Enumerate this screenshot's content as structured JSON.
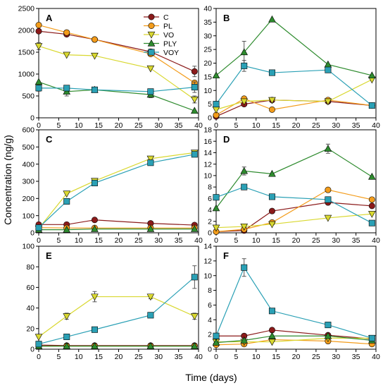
{
  "figure": {
    "ylabel": "Concentration (ng/g)",
    "xlabel": "Time (days)"
  },
  "series_styles": [
    {
      "name": "C",
      "color": "#8B1A1A",
      "marker": "circle"
    },
    {
      "name": "PL",
      "color": "#F39C1B",
      "marker": "circle"
    },
    {
      "name": "VO",
      "color": "#D9D830",
      "marker": "triangle-down"
    },
    {
      "name": "PLY",
      "color": "#2E8B2E",
      "marker": "triangle-up"
    },
    {
      "name": "VOY",
      "color": "#2AA0B5",
      "marker": "square"
    }
  ],
  "chart_data": [
    {
      "type": "line",
      "panel": "A",
      "x": [
        0,
        7,
        14,
        28,
        39
      ],
      "xlim": [
        0,
        40
      ],
      "ylim": [
        0,
        2500
      ],
      "xticks": [
        0,
        5,
        10,
        15,
        20,
        25,
        30,
        35,
        40
      ],
      "yticks": [
        0,
        500,
        1000,
        1500,
        2000,
        2500
      ],
      "legend": "top-right",
      "series": [
        {
          "name": "C",
          "values": [
            1980,
            1910,
            1790,
            1510,
            1060
          ],
          "err": [
            0,
            40,
            0,
            60,
            120
          ]
        },
        {
          "name": "PL",
          "values": [
            2120,
            1950,
            1790,
            1460,
            800
          ],
          "err": [
            0,
            0,
            0,
            0,
            0
          ]
        },
        {
          "name": "VO",
          "values": [
            1640,
            1440,
            1420,
            1130,
            420
          ],
          "err": [
            80,
            0,
            0,
            0,
            80
          ]
        },
        {
          "name": "PLY",
          "values": [
            820,
            600,
            640,
            530,
            160
          ],
          "err": [
            0,
            100,
            0,
            70,
            0
          ]
        },
        {
          "name": "VOY",
          "values": [
            680,
            680,
            640,
            600,
            700
          ],
          "err": [
            70,
            0,
            0,
            0,
            120
          ]
        }
      ]
    },
    {
      "type": "line",
      "panel": "B",
      "x": [
        0,
        7,
        14,
        28,
        39
      ],
      "xlim": [
        0,
        40
      ],
      "ylim": [
        0,
        40
      ],
      "xticks": [
        0,
        5,
        10,
        15,
        20,
        25,
        30,
        35,
        40
      ],
      "yticks": [
        0,
        5,
        10,
        15,
        20,
        25,
        30,
        35,
        40
      ],
      "series": [
        {
          "name": "C",
          "values": [
            0.5,
            5,
            6.5,
            6,
            4.5
          ],
          "err": [
            0,
            0,
            0,
            0,
            0
          ]
        },
        {
          "name": "PL",
          "values": [
            1,
            7,
            3,
            6.5,
            4.5
          ],
          "err": [
            0,
            0,
            0,
            0,
            0
          ]
        },
        {
          "name": "VO",
          "values": [
            3,
            6,
            6.5,
            6,
            14
          ],
          "err": [
            0,
            0,
            0,
            0,
            0
          ]
        },
        {
          "name": "PLY",
          "values": [
            15.5,
            24,
            36,
            19.5,
            15.5
          ],
          "err": [
            0,
            4,
            0,
            0,
            0
          ]
        },
        {
          "name": "VOY",
          "values": [
            5,
            19,
            16.5,
            17.5,
            4.5
          ],
          "err": [
            0,
            2,
            0,
            0,
            0
          ]
        }
      ]
    },
    {
      "type": "line",
      "panel": "C",
      "x": [
        0,
        7,
        14,
        28,
        39
      ],
      "xlim": [
        0,
        40
      ],
      "ylim": [
        0,
        600
      ],
      "xticks": [
        0,
        5,
        10,
        15,
        20,
        25,
        30,
        35,
        40
      ],
      "yticks": [
        0,
        100,
        200,
        300,
        400,
        500,
        600
      ],
      "series": [
        {
          "name": "C",
          "values": [
            48,
            48,
            75,
            55,
            45
          ],
          "err": [
            0,
            0,
            0,
            0,
            0
          ]
        },
        {
          "name": "PL",
          "values": [
            30,
            28,
            28,
            28,
            28
          ],
          "err": [
            0,
            0,
            0,
            0,
            0
          ]
        },
        {
          "name": "VO",
          "values": [
            25,
            228,
            302,
            432,
            467
          ],
          "err": [
            0,
            0,
            0,
            0,
            0
          ]
        },
        {
          "name": "PLY",
          "values": [
            18,
            18,
            22,
            22,
            22
          ],
          "err": [
            0,
            0,
            0,
            0,
            0
          ]
        },
        {
          "name": "VOY",
          "values": [
            30,
            183,
            290,
            408,
            457
          ],
          "err": [
            0,
            0,
            0,
            0,
            0
          ]
        }
      ]
    },
    {
      "type": "line",
      "panel": "D",
      "x": [
        0,
        7,
        14,
        28,
        39
      ],
      "xlim": [
        0,
        40
      ],
      "ylim": [
        0,
        18
      ],
      "xticks": [
        0,
        5,
        10,
        15,
        20,
        25,
        30,
        35,
        40
      ],
      "yticks": [
        0,
        2,
        4,
        6,
        8,
        10,
        12,
        14,
        16,
        18
      ],
      "series": [
        {
          "name": "C",
          "values": [
            0.2,
            0.4,
            3.8,
            5.3,
            4.7
          ],
          "err": [
            0,
            0,
            0,
            0,
            0
          ]
        },
        {
          "name": "PL",
          "values": [
            0.2,
            0.6,
            1.8,
            7.5,
            5.8
          ],
          "err": [
            0,
            0,
            0,
            0,
            0
          ]
        },
        {
          "name": "VO",
          "values": [
            0.9,
            1.1,
            1.5,
            2.6,
            3.3
          ],
          "err": [
            0,
            0,
            0,
            0,
            0
          ]
        },
        {
          "name": "PLY",
          "values": [
            4.3,
            10.8,
            10.3,
            14.7,
            9.8
          ],
          "err": [
            0,
            0.7,
            0,
            0.8,
            0
          ]
        },
        {
          "name": "VOY",
          "values": [
            6.2,
            8.0,
            6.3,
            5.8,
            1.7
          ],
          "err": [
            0,
            0,
            0,
            0,
            0
          ]
        }
      ]
    },
    {
      "type": "line",
      "panel": "E",
      "x": [
        0,
        7,
        14,
        28,
        39
      ],
      "xlim": [
        0,
        40
      ],
      "ylim": [
        0,
        100
      ],
      "xticks": [
        0,
        5,
        10,
        15,
        20,
        25,
        30,
        35,
        40
      ],
      "yticks": [
        0,
        20,
        40,
        60,
        80,
        100
      ],
      "series": [
        {
          "name": "C",
          "values": [
            4,
            3.5,
            3.5,
            3.5,
            3.5
          ],
          "err": [
            0,
            0,
            0,
            0,
            0
          ]
        },
        {
          "name": "PL",
          "values": [
            3,
            3,
            3,
            3,
            3
          ],
          "err": [
            0,
            0,
            0,
            0,
            0
          ]
        },
        {
          "name": "VO",
          "values": [
            12,
            32,
            51,
            51,
            32
          ],
          "err": [
            0,
            3,
            5,
            2,
            3
          ]
        },
        {
          "name": "PLY",
          "values": [
            3,
            3,
            3,
            3,
            3
          ],
          "err": [
            0,
            0,
            0,
            0,
            0
          ]
        },
        {
          "name": "VOY",
          "values": [
            5,
            12,
            19,
            33,
            70
          ],
          "err": [
            0,
            0,
            0,
            0,
            11
          ]
        }
      ]
    },
    {
      "type": "line",
      "panel": "F",
      "x": [
        0,
        7,
        14,
        28,
        39
      ],
      "xlim": [
        0,
        40
      ],
      "ylim": [
        0,
        14
      ],
      "xticks": [
        0,
        5,
        10,
        15,
        20,
        25,
        30,
        35,
        40
      ],
      "yticks": [
        0,
        2,
        4,
        6,
        8,
        10,
        12,
        14
      ],
      "series": [
        {
          "name": "C",
          "values": [
            1.8,
            1.8,
            2.6,
            1.9,
            1.4
          ],
          "err": [
            0,
            0,
            0,
            0,
            0
          ]
        },
        {
          "name": "PL",
          "values": [
            0.6,
            0.7,
            1.3,
            1.1,
            0.7
          ],
          "err": [
            0,
            0,
            0,
            0,
            0
          ]
        },
        {
          "name": "VO",
          "values": [
            1.0,
            1.0,
            1.0,
            1.5,
            1.5
          ],
          "err": [
            0,
            0,
            0,
            0,
            0
          ]
        },
        {
          "name": "PLY",
          "values": [
            0.9,
            1.2,
            1.8,
            1.8,
            1.2
          ],
          "err": [
            0,
            0,
            0,
            0,
            0
          ]
        },
        {
          "name": "VOY",
          "values": [
            1.8,
            11.1,
            5.2,
            3.3,
            1.5
          ],
          "err": [
            0,
            1.2,
            0,
            0,
            0
          ]
        }
      ]
    }
  ]
}
